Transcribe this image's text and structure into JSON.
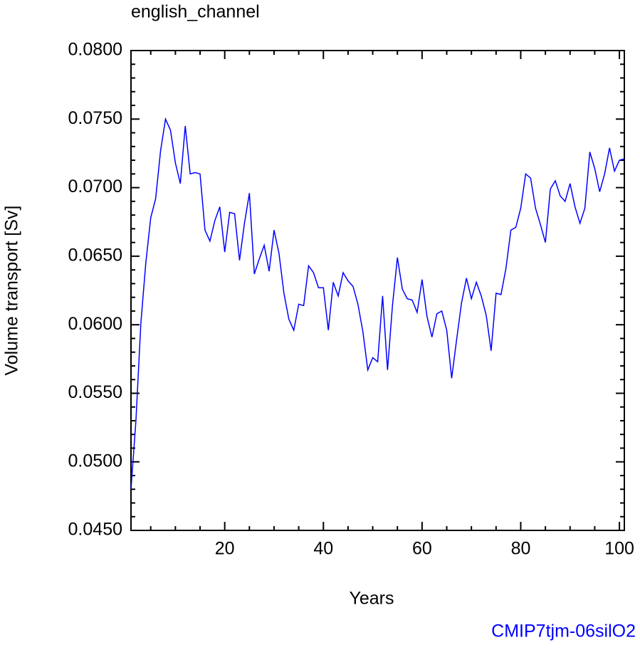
{
  "chart_data": {
    "type": "line",
    "title": "english_channel",
    "x_label": "Years",
    "y_label": "Volume transport [Sv]",
    "annotation": "CMIP7tjm-06silO2",
    "x": [
      1,
      2,
      3,
      4,
      5,
      6,
      7,
      8,
      9,
      10,
      11,
      12,
      13,
      14,
      15,
      16,
      17,
      18,
      19,
      20,
      21,
      22,
      23,
      24,
      25,
      26,
      27,
      28,
      29,
      30,
      31,
      32,
      33,
      34,
      35,
      36,
      37,
      38,
      39,
      40,
      41,
      42,
      43,
      44,
      45,
      46,
      47,
      48,
      49,
      50,
      51,
      52,
      53,
      54,
      55,
      56,
      57,
      58,
      59,
      60,
      61,
      62,
      63,
      64,
      65,
      66,
      67,
      68,
      69,
      70,
      71,
      72,
      73,
      74,
      75,
      76,
      77,
      78,
      79,
      80,
      81,
      82,
      83,
      84,
      85,
      86,
      87,
      88,
      89,
      90,
      91,
      92,
      93,
      94,
      95,
      96,
      97,
      98,
      99,
      100,
      101
    ],
    "series": [
      {
        "color": "#0000ff",
        "values": [
          0.048,
          0.053,
          0.0601,
          0.0645,
          0.0678,
          0.0692,
          0.0727,
          0.075,
          0.0742,
          0.0718,
          0.0703,
          0.0745,
          0.071,
          0.0711,
          0.071,
          0.0669,
          0.0661,
          0.0676,
          0.0686,
          0.0653,
          0.0682,
          0.0681,
          0.0647,
          0.0674,
          0.0696,
          0.0637,
          0.0648,
          0.0658,
          0.0639,
          0.0669,
          0.0652,
          0.0623,
          0.0604,
          0.0596,
          0.0615,
          0.0614,
          0.0643,
          0.0638,
          0.0627,
          0.0627,
          0.0596,
          0.0631,
          0.0621,
          0.0638,
          0.0632,
          0.0628,
          0.0615,
          0.0595,
          0.0567,
          0.0576,
          0.0573,
          0.0621,
          0.0567,
          0.0614,
          0.0649,
          0.0626,
          0.0619,
          0.0618,
          0.0609,
          0.0633,
          0.0606,
          0.0591,
          0.0608,
          0.061,
          0.0596,
          0.0561,
          0.0589,
          0.0616,
          0.0634,
          0.0619,
          0.0631,
          0.0621,
          0.0607,
          0.0581,
          0.0623,
          0.0622,
          0.0641,
          0.0669,
          0.0671,
          0.0685,
          0.071,
          0.0707,
          0.0685,
          0.0673,
          0.066,
          0.0699,
          0.0705,
          0.0694,
          0.069,
          0.0703,
          0.0686,
          0.0674,
          0.0685,
          0.0726,
          0.0714,
          0.0697,
          0.071,
          0.0729,
          0.0712,
          0.072,
          0.0721
        ]
      }
    ],
    "xlim": [
      1,
      101
    ],
    "xticks": [
      20,
      40,
      60,
      80,
      100
    ],
    "ylim": [
      0.045,
      0.08
    ],
    "yticks": [
      {
        "value": 0.045,
        "label": "0.0450"
      },
      {
        "value": 0.05,
        "label": "0.0500"
      },
      {
        "value": 0.055,
        "label": "0.0550"
      },
      {
        "value": 0.06,
        "label": "0.0600"
      },
      {
        "value": 0.065,
        "label": "0.0650"
      },
      {
        "value": 0.07,
        "label": "0.0700"
      },
      {
        "value": 0.075,
        "label": "0.0750"
      },
      {
        "value": 0.08,
        "label": "0.0800"
      }
    ],
    "grid": false
  }
}
